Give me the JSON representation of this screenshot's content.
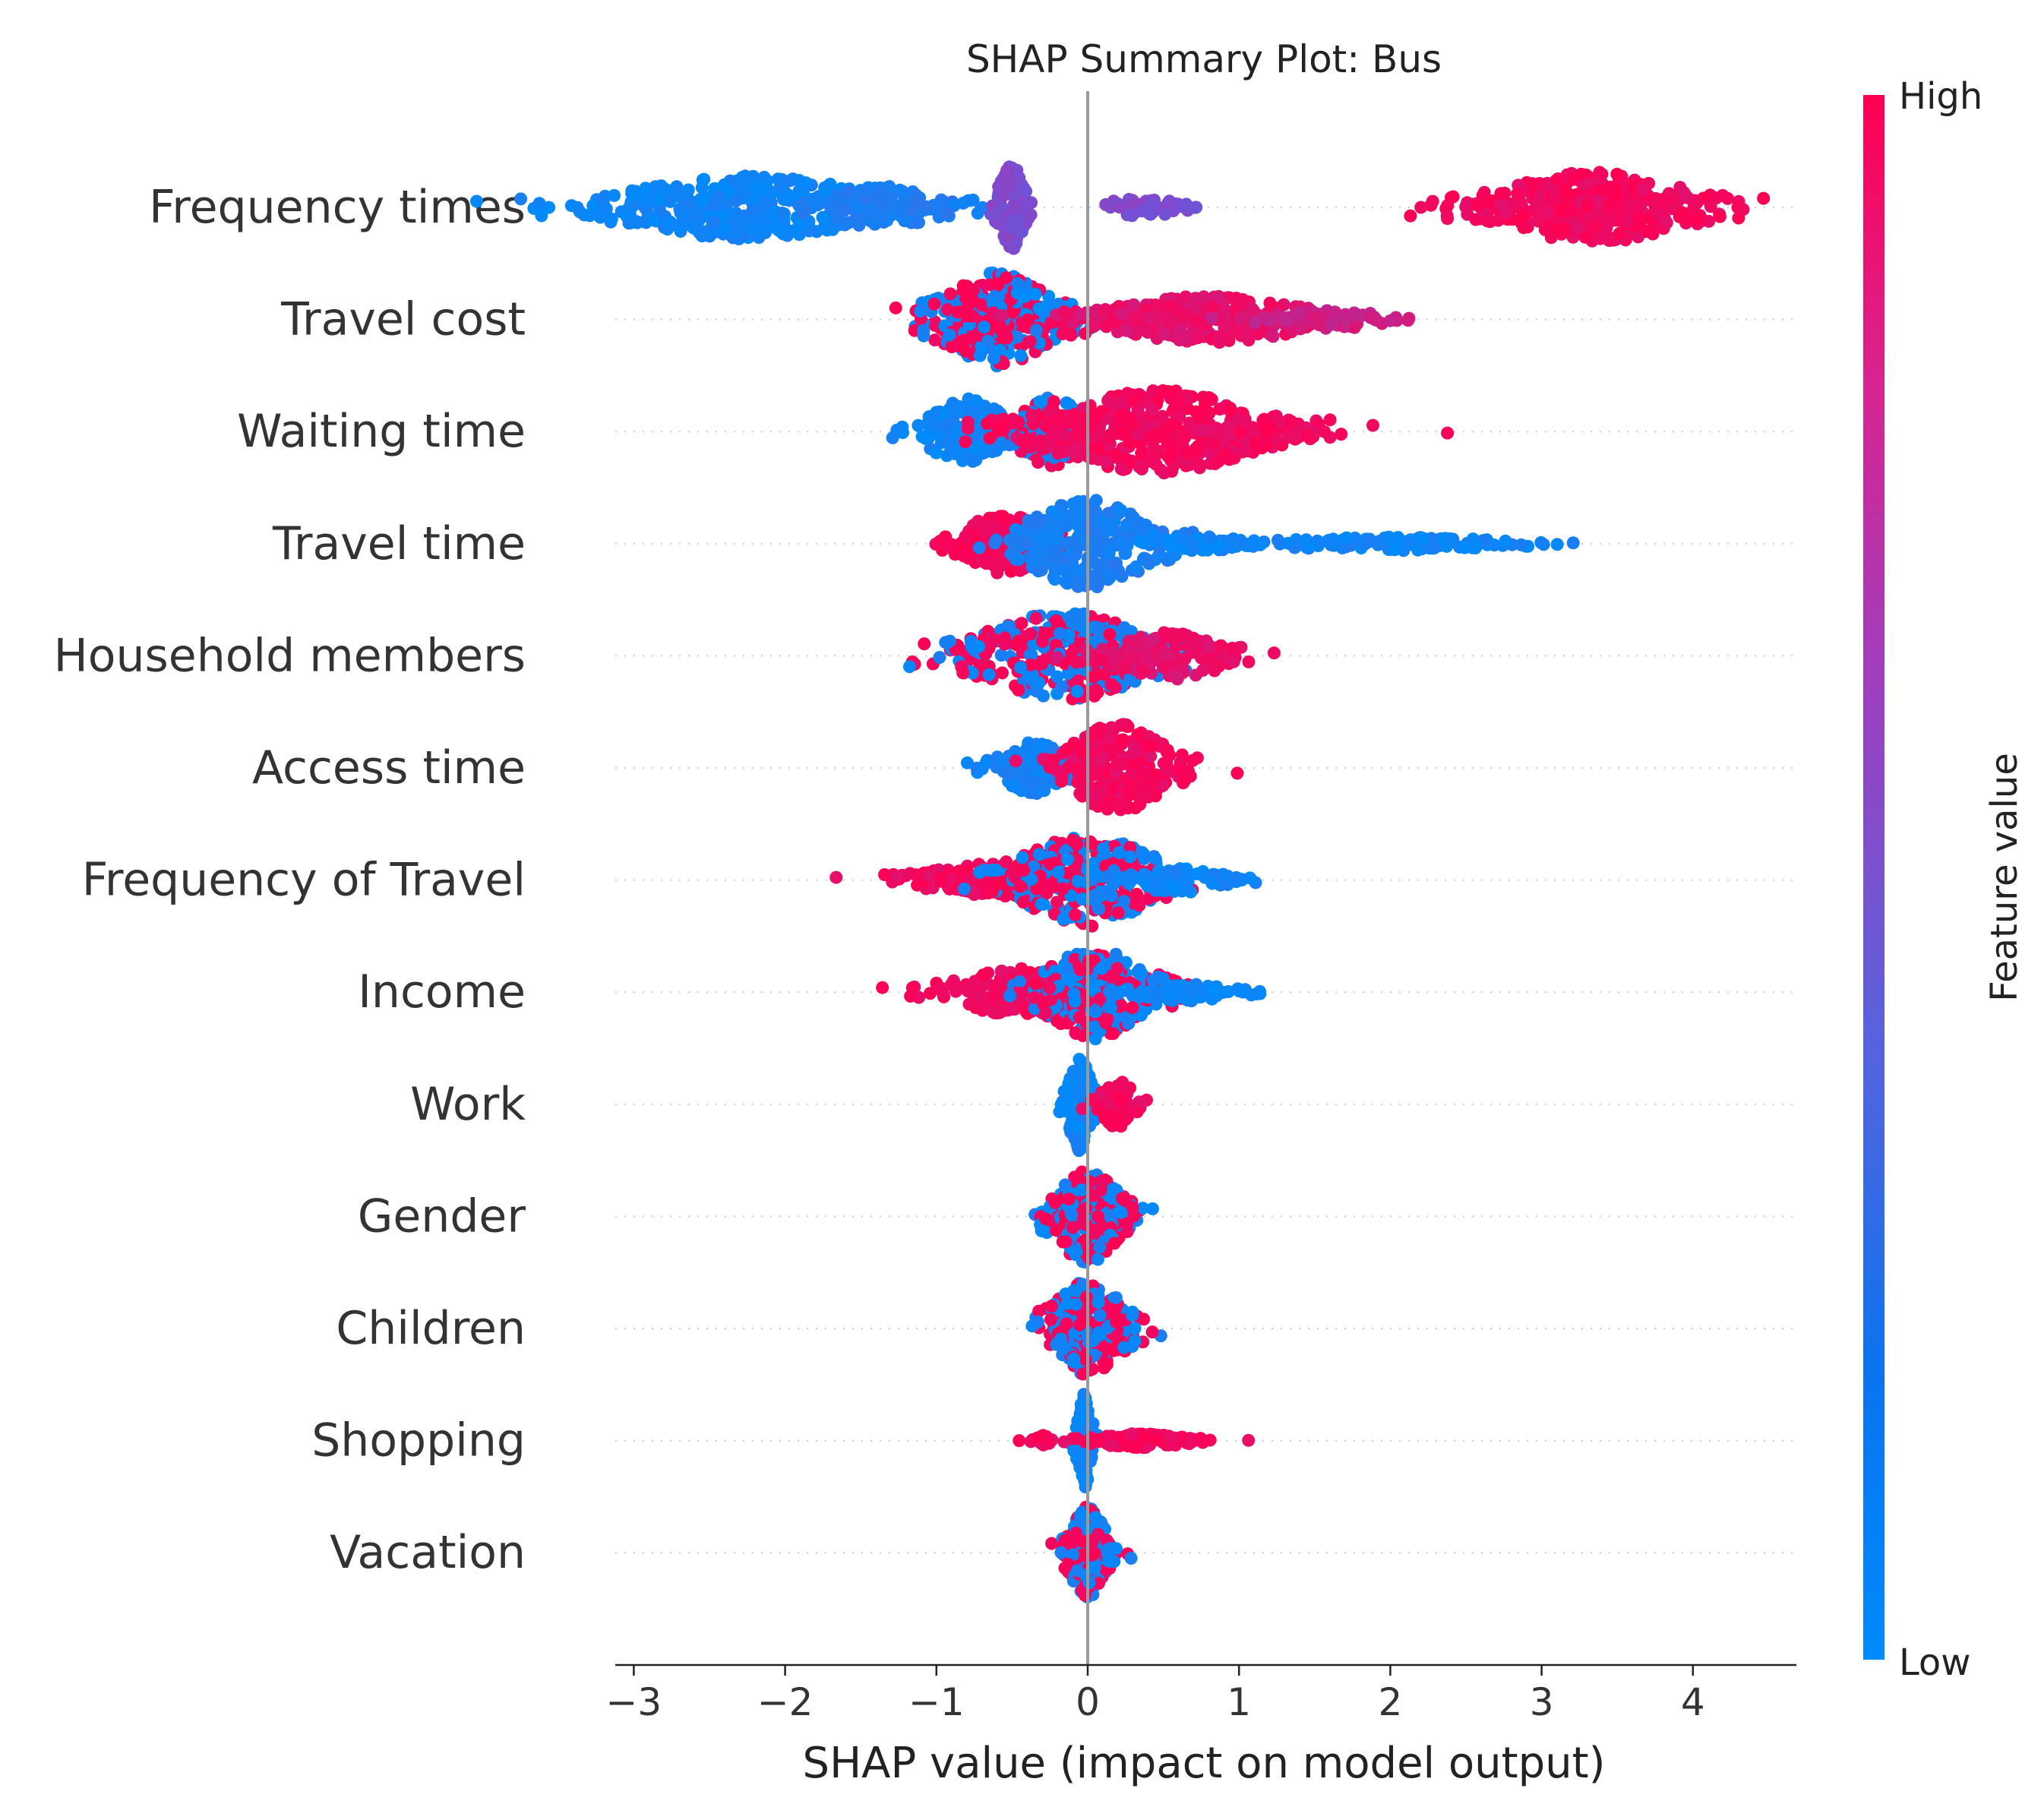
{
  "chart_data": {
    "type": "scatter",
    "subtype": "shap-beeswarm",
    "title": "SHAP Summary Plot: Bus",
    "xlabel": "SHAP value (impact on model output)",
    "ylabel": "",
    "xlim": [
      -3.1,
      4.7
    ],
    "xticks": [
      -3,
      -2,
      -1,
      0,
      1,
      2,
      3,
      4
    ],
    "xtick_labels": [
      "−3",
      "−2",
      "−1",
      "0",
      "1",
      "2",
      "3",
      "4"
    ],
    "colorbar": {
      "label": "Feature value",
      "high_label": "High",
      "low_label": "Low",
      "low_color": "#008bfb",
      "high_color": "#ff0052"
    },
    "features": [
      {
        "name": "Frequency times",
        "clusters": [
          {
            "center": -2.25,
            "spread": 0.55,
            "width": 0.7,
            "count": 420,
            "value": 0.05
          },
          {
            "center": -1.35,
            "spread": 0.25,
            "width": 0.45,
            "count": 110,
            "value": 0.12
          },
          {
            "center": -0.5,
            "spread": 0.06,
            "width": 0.9,
            "count": 120,
            "value": 0.5
          },
          {
            "center": 0.35,
            "spread": 0.18,
            "width": 0.2,
            "count": 50,
            "value": 0.5
          },
          {
            "center": 3.35,
            "spread": 0.45,
            "width": 0.75,
            "count": 360,
            "value": 0.95
          }
        ]
      },
      {
        "name": "Travel cost",
        "clusters": [
          {
            "center": -0.6,
            "spread": 0.25,
            "width": 1.0,
            "count": 320,
            "value": -1
          },
          {
            "center": 0.8,
            "spread": 0.45,
            "width": 0.5,
            "count": 280,
            "value": 0.9
          },
          {
            "center": 1.6,
            "spread": 0.25,
            "width": 0.2,
            "count": 80,
            "value": 0.8
          }
        ]
      },
      {
        "name": "Waiting time",
        "clusters": [
          {
            "center": -0.8,
            "spread": 0.18,
            "width": 0.7,
            "count": 160,
            "value": 0.05
          },
          {
            "center": -0.25,
            "spread": 0.15,
            "width": 0.75,
            "count": 150,
            "value": -1
          },
          {
            "center": 0.45,
            "spread": 0.45,
            "width": 0.9,
            "count": 380,
            "value": 0.95
          },
          {
            "center": 1.15,
            "spread": 0.18,
            "width": 0.35,
            "count": 60,
            "value": 0.95
          }
        ]
      },
      {
        "name": "Travel time",
        "clusters": [
          {
            "center": -0.55,
            "spread": 0.2,
            "width": 0.65,
            "count": 170,
            "value": 0.97
          },
          {
            "center": 0.0,
            "spread": 0.28,
            "width": 0.95,
            "count": 280,
            "value": 0.1
          },
          {
            "center": 0.75,
            "spread": 0.22,
            "width": 0.15,
            "count": 60,
            "value": 0.05
          },
          {
            "center": 2.0,
            "spread": 0.5,
            "width": 0.15,
            "count": 130,
            "value": 0.05
          }
        ]
      },
      {
        "name": "Household members",
        "clusters": [
          {
            "center": -0.15,
            "spread": 0.38,
            "width": 0.95,
            "count": 360,
            "value": -1
          },
          {
            "center": 0.55,
            "spread": 0.25,
            "width": 0.5,
            "count": 140,
            "value": 0.9
          }
        ]
      },
      {
        "name": "Access time",
        "clusters": [
          {
            "center": -0.35,
            "spread": 0.15,
            "width": 0.55,
            "count": 140,
            "value": 0.08
          },
          {
            "center": 0.2,
            "spread": 0.22,
            "width": 0.95,
            "count": 230,
            "value": 0.95
          }
        ]
      },
      {
        "name": "Frequency of Travel",
        "clusters": [
          {
            "center": -0.6,
            "spread": 0.35,
            "width": 0.35,
            "count": 150,
            "value": 0.95
          },
          {
            "center": 0.0,
            "spread": 0.3,
            "width": 1.0,
            "count": 320,
            "value": -1
          },
          {
            "center": 0.6,
            "spread": 0.2,
            "width": 0.25,
            "count": 70,
            "value": 0.05
          }
        ]
      },
      {
        "name": "Income",
        "clusters": [
          {
            "center": -0.45,
            "spread": 0.3,
            "width": 0.5,
            "count": 170,
            "value": 0.95
          },
          {
            "center": 0.05,
            "spread": 0.22,
            "width": 1.0,
            "count": 260,
            "value": -1
          },
          {
            "center": 0.65,
            "spread": 0.22,
            "width": 0.2,
            "count": 80,
            "value": 0.05
          }
        ]
      },
      {
        "name": "Work",
        "clusters": [
          {
            "center": -0.05,
            "spread": 0.05,
            "width": 1.0,
            "count": 160,
            "value": 0.05
          },
          {
            "center": 0.2,
            "spread": 0.08,
            "width": 0.5,
            "count": 80,
            "value": 0.95
          }
        ]
      },
      {
        "name": "Gender",
        "clusters": [
          {
            "center": 0.0,
            "spread": 0.15,
            "width": 1.0,
            "count": 250,
            "value": -1
          }
        ]
      },
      {
        "name": "Children",
        "clusters": [
          {
            "center": 0.0,
            "spread": 0.17,
            "width": 1.0,
            "count": 260,
            "value": -1
          }
        ]
      },
      {
        "name": "Shopping",
        "clusters": [
          {
            "center": -0.02,
            "spread": 0.03,
            "width": 1.0,
            "count": 110,
            "value": 0.05
          },
          {
            "center": 0.35,
            "spread": 0.2,
            "width": 0.15,
            "count": 130,
            "value": 0.95
          },
          {
            "center": -0.3,
            "spread": 0.06,
            "width": 0.12,
            "count": 20,
            "value": 0.95
          }
        ]
      },
      {
        "name": "Vacation",
        "clusters": [
          {
            "center": 0.0,
            "spread": 0.08,
            "width": 1.0,
            "count": 200,
            "value": -1
          }
        ]
      }
    ]
  }
}
